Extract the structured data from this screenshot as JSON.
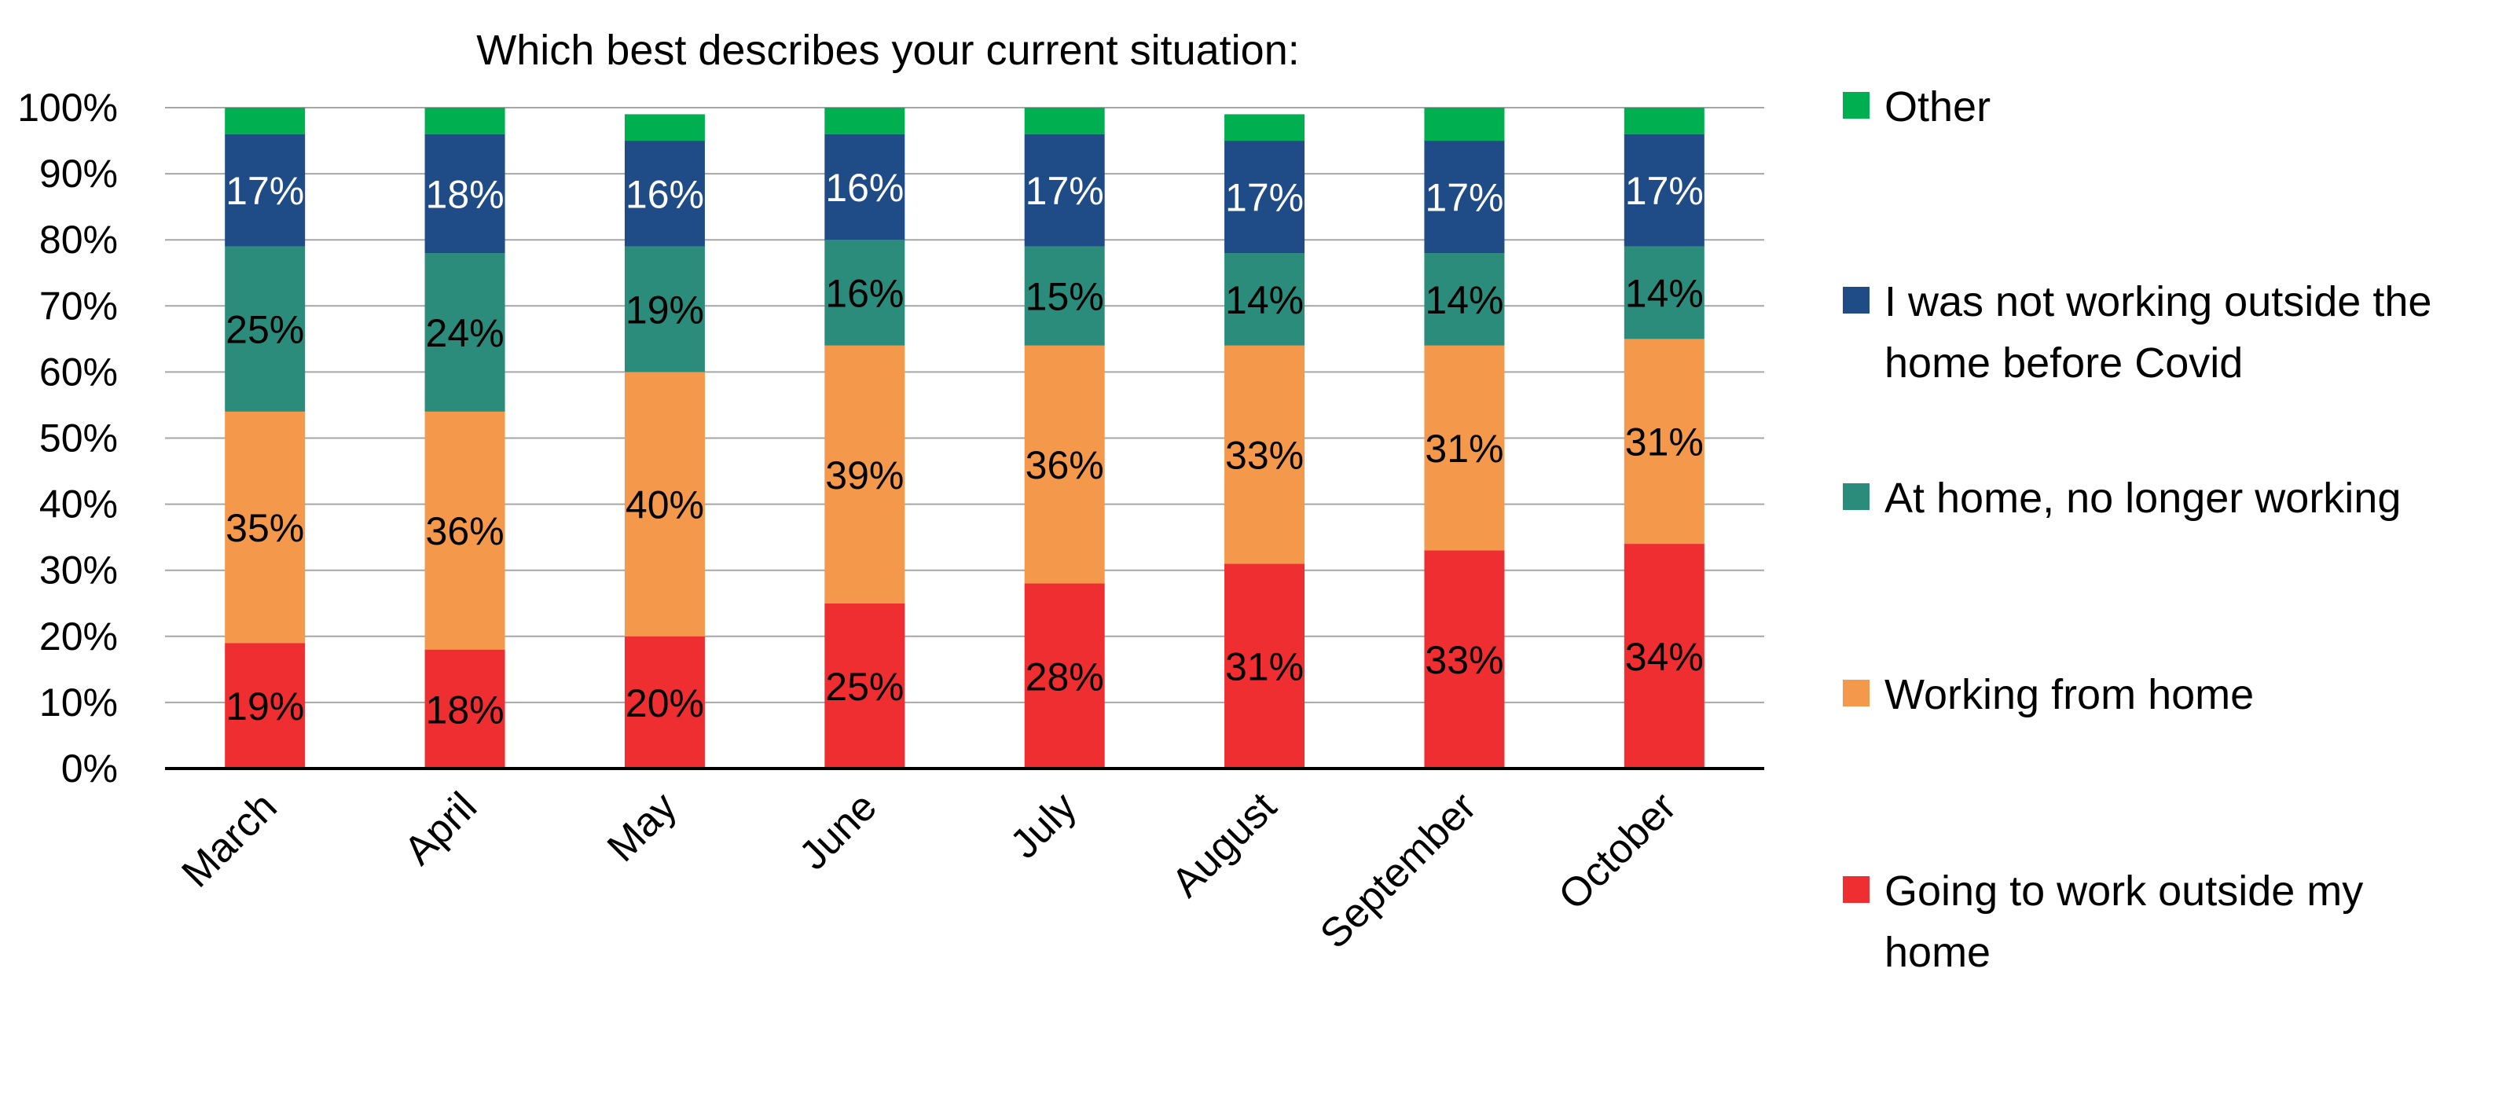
{
  "chart_data": {
    "type": "bar",
    "stacked": true,
    "title": "Which best describes your current situation:",
    "categories": [
      "March",
      "April",
      "May",
      "June",
      "July",
      "August",
      "September",
      "October"
    ],
    "series": [
      {
        "name": "Going to work outside my home",
        "color": "#EE2E31",
        "label_color": "#000000",
        "values": [
          19,
          18,
          20,
          25,
          28,
          31,
          33,
          34
        ],
        "labels": [
          "19%",
          "18%",
          "20%",
          "25%",
          "28%",
          "31%",
          "33%",
          "34%"
        ]
      },
      {
        "name": "Working from home",
        "color": "#F4984B",
        "label_color": "#000000",
        "values": [
          35,
          36,
          40,
          39,
          36,
          33,
          31,
          31
        ],
        "labels": [
          "35%",
          "36%",
          "40%",
          "39%",
          "36%",
          "33%",
          "31%",
          "31%"
        ]
      },
      {
        "name": "At home, no longer working",
        "color": "#2C8C7C",
        "label_color": "#000000",
        "values": [
          25,
          24,
          19,
          16,
          15,
          14,
          14,
          14
        ],
        "labels": [
          "25%",
          "24%",
          "19%",
          "16%",
          "15%",
          "14%",
          "14%",
          "14%"
        ]
      },
      {
        "name": "I was not working outside the home before Covid",
        "color": "#1F4B87",
        "label_color": "#FFFFFF",
        "values": [
          17,
          18,
          16,
          16,
          17,
          17,
          17,
          17
        ],
        "labels": [
          "17%",
          "18%",
          "16%",
          "16%",
          "17%",
          "17%",
          "17%",
          "17%"
        ]
      },
      {
        "name": "Other",
        "color": "#00B050",
        "label_color": "#000000",
        "values": [
          4,
          4,
          4,
          4,
          4,
          4,
          5,
          4
        ],
        "labels": []
      }
    ],
    "legend_items": [
      [
        "Other"
      ],
      [
        "I was not working outside the",
        "home before Covid"
      ],
      [
        "At home, no longer working"
      ],
      [
        "Working from home"
      ],
      [
        "Going to work outside my",
        "home"
      ]
    ],
    "legend_colors": [
      "#00B050",
      "#1F4B87",
      "#2C8C7C",
      "#F4984B",
      "#EE2E31"
    ],
    "yticks": [
      "0%",
      "10%",
      "20%",
      "30%",
      "40%",
      "50%",
      "60%",
      "70%",
      "80%",
      "90%",
      "100%"
    ],
    "ylim": [
      0,
      100
    ],
    "grid": true,
    "legend_position": "right",
    "grid_color": "#A6A6A6"
  }
}
